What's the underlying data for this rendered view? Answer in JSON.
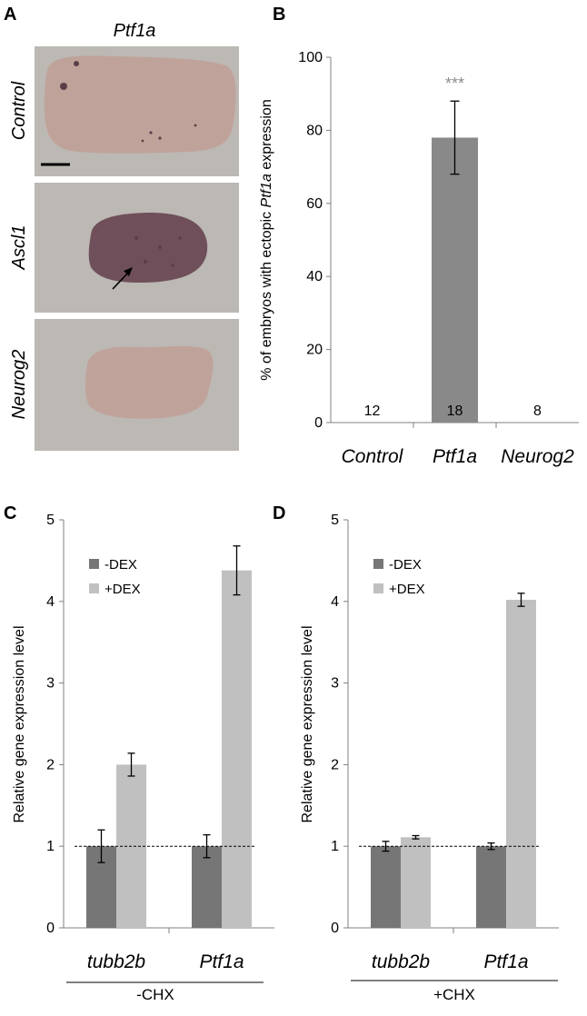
{
  "panel_letters": [
    "A",
    "B",
    "C",
    "D"
  ],
  "panel_a": {
    "title": "Ptf1a",
    "photos": [
      {
        "label": "Control"
      },
      {
        "label": "Ascl1"
      },
      {
        "label": "Neurog2"
      }
    ],
    "colors": {
      "background": "#bcb8b4",
      "embryo": "#bfa39a",
      "stain": "#5a3f48"
    }
  },
  "chart_data": [
    {
      "panel": "B",
      "type": "bar",
      "categories": [
        "Control",
        "Ptf1a",
        "Neurog2"
      ],
      "values": [
        0,
        78,
        0
      ],
      "errors": [
        0,
        10,
        0
      ],
      "counts": [
        "12",
        "18",
        "8"
      ],
      "significance": "***",
      "ylabel_parts": [
        "% of embryos with ectopic ",
        "Ptf1a",
        " expression"
      ],
      "ylim": [
        0,
        100
      ],
      "yticks": [
        "0",
        "20",
        "40",
        "60",
        "80",
        "100"
      ],
      "grid": false,
      "colors": {
        "bar": "#898989",
        "significance": "#8c8c8c"
      }
    },
    {
      "panel": "C",
      "type": "bar",
      "categories": [
        "tubb2b",
        "Ptf1a"
      ],
      "group_label": "-CHX",
      "series": [
        {
          "name": "-DEX",
          "values": [
            1.0,
            1.0
          ],
          "errors": [
            0.2,
            0.14
          ]
        },
        {
          "name": "+DEX",
          "values": [
            2.0,
            4.38
          ],
          "errors": [
            0.14,
            0.3
          ]
        }
      ],
      "reference_line": 1,
      "ylabel": "Relative gene expression level",
      "ylim": [
        0,
        5
      ],
      "yticks": [
        "0",
        "1",
        "2",
        "3",
        "4",
        "5"
      ],
      "legend": "top-left",
      "grid": false,
      "colors": {
        "-DEX": "#767676",
        "+DEX": "#c0c0c0"
      }
    },
    {
      "panel": "D",
      "type": "bar",
      "categories": [
        "tubb2b",
        "Ptf1a"
      ],
      "group_label": "+CHX",
      "series": [
        {
          "name": "-DEX",
          "values": [
            1.0,
            1.0
          ],
          "errors": [
            0.06,
            0.04
          ]
        },
        {
          "name": "+DEX",
          "values": [
            1.11,
            4.02
          ],
          "errors": [
            0.02,
            0.08
          ]
        }
      ],
      "reference_line": 1,
      "ylabel": "Relative gene expression level",
      "ylim": [
        0,
        5
      ],
      "yticks": [
        "0",
        "1",
        "2",
        "3",
        "4",
        "5"
      ],
      "legend": "top-left",
      "grid": false,
      "colors": {
        "-DEX": "#767676",
        "+DEX": "#c0c0c0"
      }
    }
  ]
}
